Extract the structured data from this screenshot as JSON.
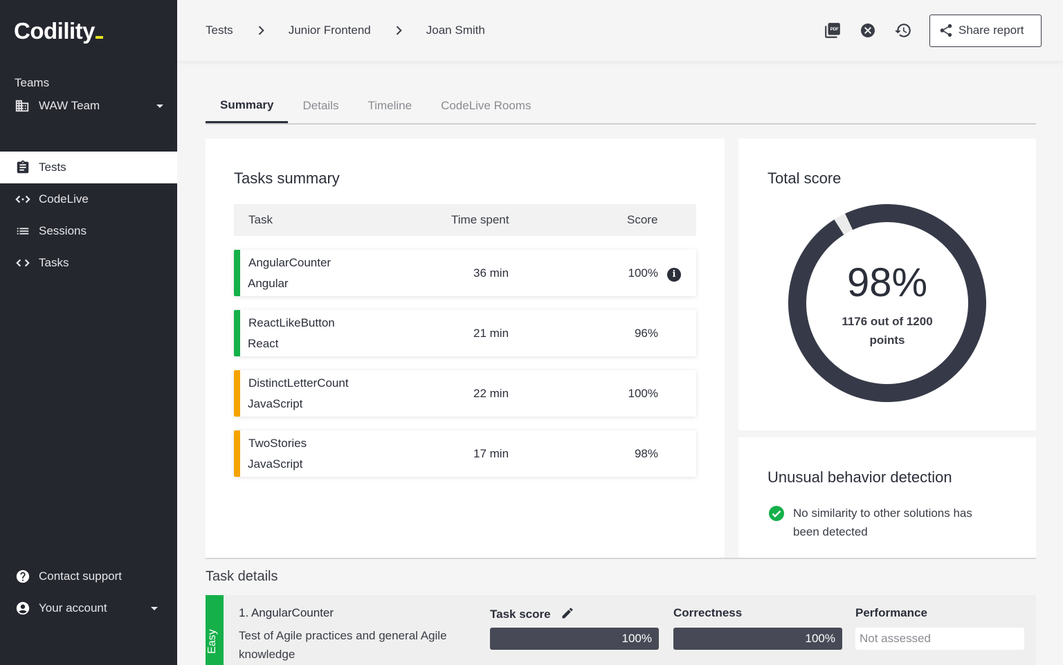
{
  "brand": {
    "name": "Codility",
    "accent": "#e4e31f"
  },
  "sidebar": {
    "teams_label": "Teams",
    "team": "WAW Team",
    "items": [
      {
        "label": "Tests",
        "icon": "clipboard-icon",
        "active": true
      },
      {
        "label": "CodeLive",
        "icon": "code-live-icon",
        "active": false
      },
      {
        "label": "Sessions",
        "icon": "list-icon",
        "active": false
      },
      {
        "label": "Tasks",
        "icon": "code-icon",
        "active": false
      }
    ],
    "bottom": [
      {
        "label": "Contact support",
        "icon": "help-icon"
      },
      {
        "label": "Your account",
        "icon": "account-icon"
      }
    ]
  },
  "header": {
    "breadcrumb": [
      "Tests",
      "Junior Frontend",
      "Joan Smith"
    ],
    "actions": [
      "pdf-icon",
      "close-circle-icon",
      "history-icon"
    ],
    "share_label": "Share report"
  },
  "tabs": [
    {
      "label": "Summary",
      "active": true
    },
    {
      "label": "Details",
      "active": false
    },
    {
      "label": "Timeline",
      "active": false
    },
    {
      "label": "CodeLive Rooms",
      "active": false
    }
  ],
  "tasks_summary": {
    "title": "Tasks summary",
    "columns": [
      "Task",
      "Time spent",
      "Score"
    ],
    "rows": [
      {
        "name": "AngularCounter",
        "lang": "Angular",
        "time": "36 min",
        "score": "100%",
        "color": "#15b04a",
        "info": true
      },
      {
        "name": "ReactLikeButton",
        "lang": "React",
        "time": "21 min",
        "score": "96%",
        "color": "#15b04a",
        "info": false
      },
      {
        "name": "DistinctLetterCount",
        "lang": "JavaScript",
        "time": "22 min",
        "score": "100%",
        "color": "#f5a300",
        "info": false
      },
      {
        "name": "TwoStories",
        "lang": "JavaScript",
        "time": "17 min",
        "score": "98%",
        "color": "#f5a300",
        "info": false
      }
    ]
  },
  "total_score": {
    "title": "Total score",
    "percent": "98%",
    "points": "1176 out of 1200",
    "points_unit": "points",
    "value": 98,
    "ring_color": "#363a48",
    "track_color": "#ebebeb"
  },
  "unusual": {
    "title": "Unusual behavior detection",
    "message": "No similarity to other solutions has been detected",
    "status_color": "#15b04a"
  },
  "task_details": {
    "title": "Task details",
    "item": {
      "difficulty": "Easy",
      "name": "1. AngularCounter",
      "description": "Test of Agile practices and general Agile knowledge",
      "task_score_label": "Task score",
      "task_score": "100%",
      "correctness_label": "Correctness",
      "correctness": "100%",
      "performance_label": "Performance",
      "performance": "Not assessed"
    }
  }
}
